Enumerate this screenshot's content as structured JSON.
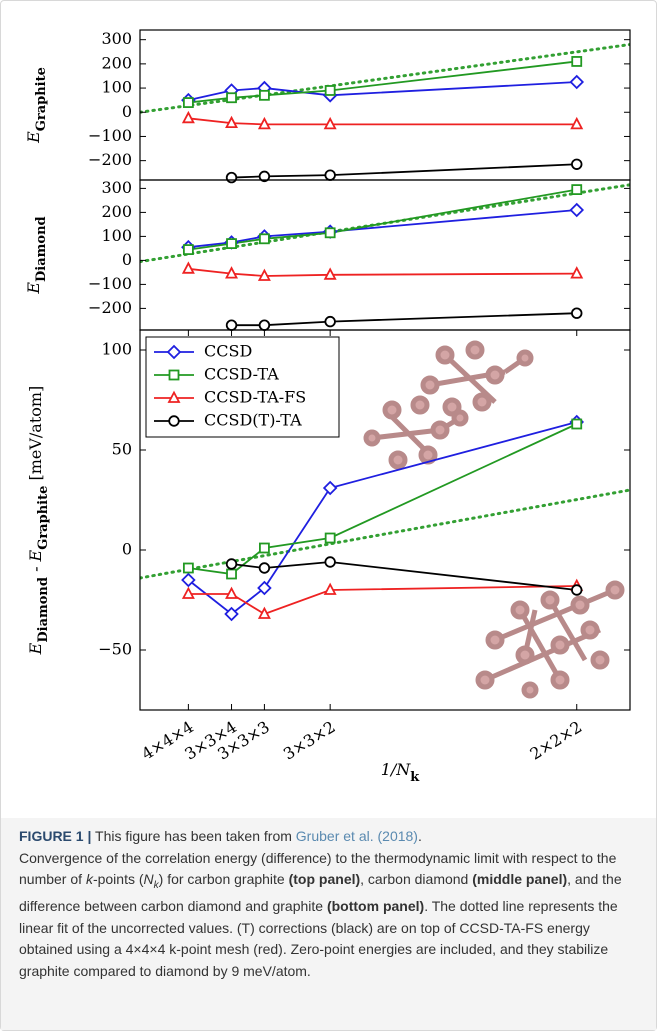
{
  "chart_data": [
    {
      "type": "line",
      "ylabel": [
        {
          "text": "E"
        },
        {
          "text": "Graphite",
          "sub": true
        }
      ],
      "x": [
        0.015625,
        0.027778,
        0.037037,
        0.055556,
        0.125
      ],
      "xlim": [
        0.002,
        0.14
      ],
      "ylim": [
        -280,
        340
      ],
      "yticks": [
        300,
        200,
        100,
        0,
        {
          "value": -100,
          "label": "−100"
        },
        {
          "value": -200,
          "label": "−200"
        }
      ],
      "series": [
        {
          "color": "#1f1fe0",
          "marker": "diamond",
          "values": [
            50,
            90,
            100,
            70,
            125
          ]
        },
        {
          "color": "#229922",
          "marker": "square",
          "values": [
            40,
            60,
            70,
            90,
            210
          ]
        },
        {
          "color": "#ee2222",
          "marker": "triangle",
          "values": [
            -25,
            -45,
            -50,
            -50,
            -50
          ]
        },
        {
          "color": "#000000",
          "marker": "circle",
          "values": [
            null,
            -270,
            -265,
            -260,
            -215
          ]
        }
      ],
      "fit": {
        "color": "#33a033",
        "x": [
          0.002,
          0.14
        ],
        "values": [
          0,
          280
        ]
      }
    },
    {
      "type": "line",
      "ylabel": [
        {
          "text": "E"
        },
        {
          "text": "Diamond",
          "sub": true
        }
      ],
      "x": [
        0.015625,
        0.027778,
        0.037037,
        0.055556,
        0.125
      ],
      "xlim": [
        0.002,
        0.14
      ],
      "ylim": [
        -290,
        335
      ],
      "yticks": [
        300,
        200,
        100,
        0,
        {
          "value": -100,
          "label": "−100"
        },
        {
          "value": -200,
          "label": "−200"
        }
      ],
      "series": [
        {
          "color": "#1f1fe0",
          "marker": "diamond",
          "values": [
            55,
            75,
            100,
            120,
            210
          ]
        },
        {
          "color": "#229922",
          "marker": "square",
          "values": [
            45,
            70,
            90,
            115,
            295
          ]
        },
        {
          "color": "#ee2222",
          "marker": "triangle",
          "values": [
            -35,
            -55,
            -65,
            -60,
            -55
          ]
        },
        {
          "color": "#000000",
          "marker": "circle",
          "values": [
            null,
            -270,
            -270,
            -255,
            -220
          ]
        }
      ],
      "fit": {
        "color": "#33a033",
        "x": [
          0.002,
          0.14
        ],
        "values": [
          -5,
          315
        ]
      }
    },
    {
      "type": "line",
      "ylabel": [
        {
          "text": "E"
        },
        {
          "text": "Diamond",
          "sub": true
        },
        {
          "text": " - "
        },
        {
          "text": "E"
        },
        {
          "text": "Graphite",
          "sub": true
        },
        {
          "text": " [meV/atom]"
        }
      ],
      "xlabel": [
        {
          "text": "1/N"
        },
        {
          "text": "k",
          "sub": true
        }
      ],
      "x": [
        0.015625,
        0.027778,
        0.037037,
        0.055556,
        0.125
      ],
      "xlim": [
        0.002,
        0.14
      ],
      "xticks": [
        {
          "value": 0.015625,
          "label": "4×4×4"
        },
        {
          "value": 0.027778,
          "label": "3×3×4"
        },
        {
          "value": 0.037037,
          "label": "3×3×3"
        },
        {
          "value": 0.055556,
          "label": "3×3×2"
        },
        {
          "value": 0.125,
          "label": "2×2×2"
        }
      ],
      "ylim": [
        -80,
        110
      ],
      "yticks": [
        100,
        50,
        0,
        {
          "value": -50,
          "label": "−50"
        }
      ],
      "legend": "upper left",
      "series": [
        {
          "name": "CCSD",
          "color": "#1f1fe0",
          "marker": "diamond",
          "values": [
            -15,
            -32,
            -19,
            31,
            64
          ]
        },
        {
          "name": "CCSD-TA",
          "color": "#229922",
          "marker": "square",
          "values": [
            -9,
            -12,
            1,
            6,
            63
          ]
        },
        {
          "name": "CCSD-TA-FS",
          "color": "#ee2222",
          "marker": "triangle",
          "values": [
            -22,
            -22,
            -32,
            -20,
            -18
          ]
        },
        {
          "name": "CCSD(T)-TA",
          "color": "#000000",
          "marker": "circle",
          "values": [
            null,
            -7,
            -9,
            -6,
            -20
          ]
        }
      ],
      "fit": {
        "color": "#33a033",
        "x": [
          0.002,
          0.14
        ],
        "values": [
          -14,
          30
        ]
      }
    }
  ],
  "caption": [
    {
      "text": "FIGURE 1 |",
      "label": true
    },
    {
      "text": " This figure has been taken from "
    },
    {
      "text": "Gruber et al. (2018)",
      "link": true
    },
    {
      "text": "."
    },
    {
      "text": "Convergence of the correlation energy (difference) to the thermodynamic limit with respect to the number of ",
      "newline": true
    },
    {
      "text": "k",
      "italic": true
    },
    {
      "text": "-points ("
    },
    {
      "text": "N",
      "italic": true
    },
    {
      "text": "k",
      "italic": true,
      "sub": true
    },
    {
      "text": ") for carbon graphite "
    },
    {
      "text": "(top panel)",
      "bold": true
    },
    {
      "text": ", carbon diamond "
    },
    {
      "text": "(middle panel)",
      "bold": true
    },
    {
      "text": ", and the difference between carbon diamond and graphite "
    },
    {
      "text": "(bottom panel)",
      "bold": true
    },
    {
      "text": ". The dotted line represents the linear fit of the uncorrected values. (T) corrections (black) are on top of CCSD-TA-FS energy obtained using a 4×4×4 k-point mesh (red). Zero-point energies are included, and they stabilize graphite compared to diamond by 9 meV/atom."
    }
  ]
}
